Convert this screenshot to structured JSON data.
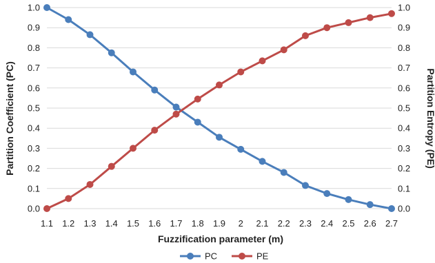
{
  "chart_data": {
    "type": "line",
    "x": [
      1.1,
      1.2,
      1.3,
      1.4,
      1.5,
      1.6,
      1.7,
      1.8,
      1.9,
      2.0,
      2.1,
      2.2,
      2.3,
      2.4,
      2.5,
      2.6,
      2.7
    ],
    "x_tick_labels": [
      "1.1",
      "1.2",
      "1.3",
      "1.4",
      "1.5",
      "1.6",
      "1.7",
      "1.8",
      "1.9",
      "2",
      "2.1",
      "2.2",
      "2.3",
      "2.4",
      "2.5",
      "2.6",
      "2.7"
    ],
    "xlabel": "Fuzzification parameter (m)",
    "ylabel_left": "Partition Coefficient (PC)",
    "ylabel_right": "Partition Entropy (PE)",
    "ylim_left": [
      0,
      1
    ],
    "ylim_right": [
      0,
      1
    ],
    "y_tick_labels": [
      "0.0",
      "0.1",
      "0.2",
      "0.3",
      "0.4",
      "0.5",
      "0.6",
      "0.7",
      "0.8",
      "0.9",
      "1.0"
    ],
    "grid": "horizontal",
    "legend_position": "bottom",
    "series": [
      {
        "name": "PC",
        "axis": "left",
        "color": "#4a7ebb",
        "values": [
          1.0,
          0.94,
          0.865,
          0.775,
          0.68,
          0.59,
          0.505,
          0.43,
          0.355,
          0.295,
          0.235,
          0.18,
          0.115,
          0.075,
          0.045,
          0.02,
          0.0
        ]
      },
      {
        "name": "PE",
        "axis": "right",
        "color": "#be4b48",
        "values": [
          0.0,
          0.05,
          0.12,
          0.21,
          0.3,
          0.39,
          0.47,
          0.545,
          0.615,
          0.68,
          0.735,
          0.79,
          0.86,
          0.9,
          0.925,
          0.95,
          0.97
        ]
      }
    ]
  }
}
